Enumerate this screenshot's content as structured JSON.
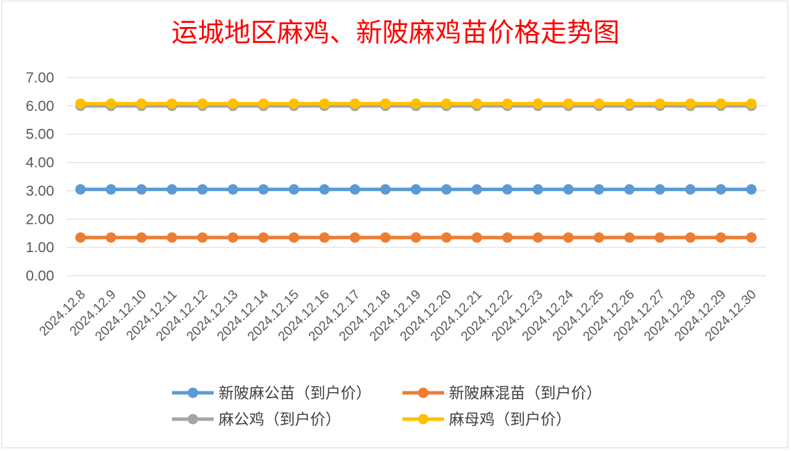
{
  "chart_data": {
    "type": "line",
    "title": "运城地区麻鸡、新陂麻鸡苗价格走势图",
    "xlabel": "",
    "ylabel": "",
    "ylim": [
      0,
      7
    ],
    "y_ticks": [
      "0.00",
      "1.00",
      "2.00",
      "3.00",
      "4.00",
      "5.00",
      "6.00",
      "7.00"
    ],
    "grid": true,
    "legend_position": "bottom",
    "categories": [
      "2024.12.8",
      "2024.12.9",
      "2024.12.10",
      "2024.12.11",
      "2024.12.12",
      "2024.12.13",
      "2024.12.14",
      "2024.12.15",
      "2024.12.16",
      "2024.12.17",
      "2024.12.18",
      "2024.12.19",
      "2024.12.20",
      "2024.12.21",
      "2024.12.22",
      "2024.12.23",
      "2024.12.24",
      "2024.12.25",
      "2024.12.26",
      "2024.12.27",
      "2024.12.28",
      "2024.12.29",
      "2024.12.30"
    ],
    "series": [
      {
        "name": "新陂麻公苗（到户价）",
        "color": "#5b9bd5",
        "values": [
          3.05,
          3.05,
          3.05,
          3.05,
          3.05,
          3.05,
          3.05,
          3.05,
          3.05,
          3.05,
          3.05,
          3.05,
          3.05,
          3.05,
          3.05,
          3.05,
          3.05,
          3.05,
          3.05,
          3.05,
          3.05,
          3.05,
          3.05
        ]
      },
      {
        "name": "新陂麻混苗（到户价）",
        "color": "#ed7d31",
        "values": [
          1.35,
          1.35,
          1.35,
          1.35,
          1.35,
          1.35,
          1.35,
          1.35,
          1.35,
          1.35,
          1.35,
          1.35,
          1.35,
          1.35,
          1.35,
          1.35,
          1.35,
          1.35,
          1.35,
          1.35,
          1.35,
          1.35,
          1.35
        ]
      },
      {
        "name": "麻公鸡（到户价）",
        "color": "#a5a5a5",
        "values": [
          6.0,
          6.0,
          6.0,
          6.0,
          6.0,
          6.0,
          6.0,
          6.0,
          6.0,
          6.0,
          6.0,
          6.0,
          6.0,
          6.0,
          6.0,
          6.0,
          6.0,
          6.0,
          6.0,
          6.0,
          6.0,
          6.0,
          6.0
        ]
      },
      {
        "name": "麻母鸡（到户价）",
        "color": "#ffc000",
        "values": [
          6.08,
          6.08,
          6.08,
          6.08,
          6.08,
          6.08,
          6.08,
          6.08,
          6.08,
          6.08,
          6.08,
          6.08,
          6.08,
          6.08,
          6.08,
          6.08,
          6.08,
          6.08,
          6.08,
          6.08,
          6.08,
          6.08,
          6.08
        ]
      }
    ]
  }
}
